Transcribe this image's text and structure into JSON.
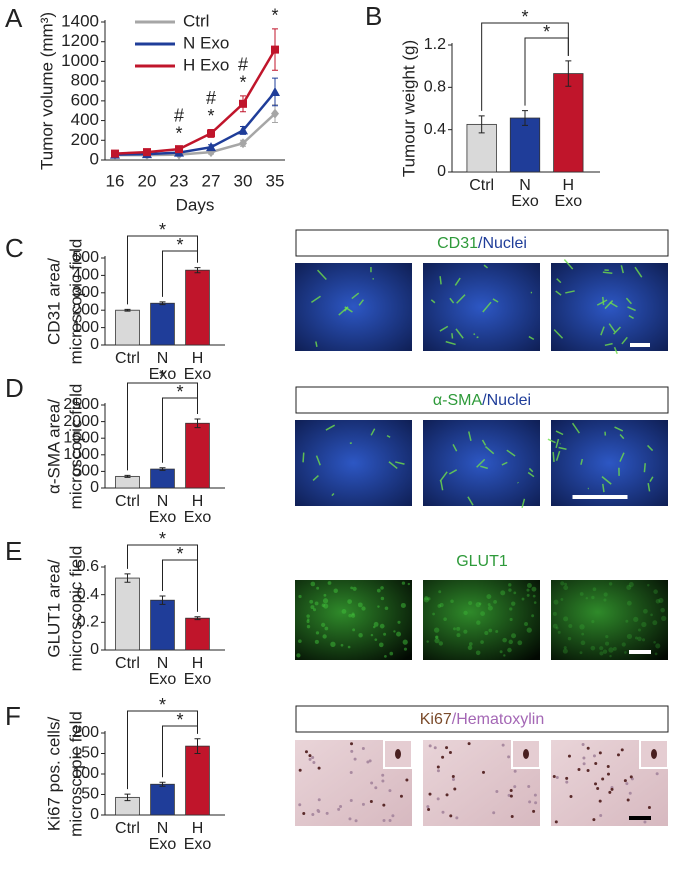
{
  "chart_data": [
    {
      "type": "line",
      "panel_label": "A",
      "ylabel": [
        "Tumor volume (mm³)"
      ],
      "xlabel": "Days",
      "categories": [
        "16",
        "20",
        "23",
        "27",
        "30",
        "35"
      ],
      "ylim": [
        0,
        1400
      ],
      "yticks": [
        0,
        200,
        400,
        600,
        800,
        1000,
        1200,
        1400
      ],
      "series": [
        {
          "name": "Ctrl",
          "color": "#a6a6a6",
          "marker": "diamond",
          "values": [
            50,
            50,
            55,
            80,
            170,
            470
          ],
          "errors": [
            10,
            10,
            15,
            20,
            30,
            90
          ]
        },
        {
          "name": "N Exo",
          "color": "#1f3d99",
          "marker": "triangle",
          "values": [
            55,
            60,
            75,
            130,
            300,
            690
          ],
          "errors": [
            10,
            10,
            15,
            25,
            40,
            140
          ]
        },
        {
          "name": "H Exo",
          "color": "#c0152b",
          "marker": "square",
          "values": [
            65,
            80,
            110,
            270,
            570,
            1120
          ],
          "errors": [
            15,
            15,
            25,
            40,
            80,
            210
          ]
        }
      ],
      "annotations": [
        {
          "x": "23",
          "labels": [
            "#",
            "*"
          ]
        },
        {
          "x": "27",
          "labels": [
            "#",
            "*"
          ]
        },
        {
          "x": "30",
          "labels": [
            "#",
            "*"
          ]
        },
        {
          "x": "35",
          "labels": [
            "*"
          ]
        }
      ]
    },
    {
      "type": "bar",
      "panel_label": "B",
      "ylabel": [
        "Tumour weight (g)"
      ],
      "categories": [
        "Ctrl",
        "N Exo",
        "H Exo"
      ],
      "colors": [
        "#d9d9d9",
        "#1f3d99",
        "#c0152b"
      ],
      "values": [
        0.45,
        0.51,
        0.93
      ],
      "errors": [
        0.08,
        0.07,
        0.12
      ],
      "ylim": [
        0,
        1.2
      ],
      "yticks": [
        0,
        0.4,
        0.8,
        1.2
      ],
      "annotations": [
        {
          "from": 0,
          "to": 2,
          "text": "*"
        },
        {
          "from": 1,
          "to": 2,
          "text": "*"
        }
      ]
    },
    {
      "type": "bar",
      "panel_label": "C",
      "ylabel": [
        "CD31 area/",
        "microscopic field"
      ],
      "categories": [
        "Ctrl",
        "N Exo",
        "H Exo"
      ],
      "colors": [
        "#d9d9d9",
        "#1f3d99",
        "#c0152b"
      ],
      "values": [
        200,
        240,
        430
      ],
      "errors": [
        5,
        8,
        15
      ],
      "ylim": [
        0,
        500
      ],
      "yticks": [
        0,
        100,
        200,
        300,
        400,
        500
      ],
      "annotations": [
        {
          "from": 0,
          "to": 2,
          "text": "*"
        },
        {
          "from": 1,
          "to": 2,
          "text": "*"
        }
      ]
    },
    {
      "type": "bar",
      "panel_label": "D",
      "ylabel": [
        "α-SMA area/",
        "microscopic field"
      ],
      "categories": [
        "Ctrl",
        "N Exo",
        "H Exo"
      ],
      "colors": [
        "#d9d9d9",
        "#1f3d99",
        "#c0152b"
      ],
      "values": [
        350,
        570,
        1950
      ],
      "errors": [
        30,
        40,
        130
      ],
      "ylim": [
        0,
        2500
      ],
      "yticks": [
        0,
        500,
        1000,
        1500,
        2000,
        2500
      ],
      "annotations": [
        {
          "from": 0,
          "to": 2,
          "text": "*"
        },
        {
          "from": 1,
          "to": 2,
          "text": "*"
        }
      ]
    },
    {
      "type": "bar",
      "panel_label": "E",
      "ylabel": [
        "GLUT1 area/",
        "microscopic field"
      ],
      "categories": [
        "Ctrl",
        "N Exo",
        "H Exo"
      ],
      "colors": [
        "#d9d9d9",
        "#1f3d99",
        "#c0152b"
      ],
      "values": [
        0.52,
        0.36,
        0.23
      ],
      "errors": [
        0.03,
        0.03,
        0.01
      ],
      "ylim": [
        0,
        0.6
      ],
      "yticks": [
        0,
        0.2,
        0.4,
        0.6
      ],
      "annotations": [
        {
          "from": 0,
          "to": 2,
          "text": "*"
        },
        {
          "from": 1,
          "to": 2,
          "text": "*"
        }
      ]
    },
    {
      "type": "bar",
      "panel_label": "F",
      "ylabel": [
        "Ki67 pos. cells/",
        "microscopic field"
      ],
      "categories": [
        "Ctrl",
        "N Exo",
        "H Exo"
      ],
      "colors": [
        "#d9d9d9",
        "#1f3d99",
        "#c0152b"
      ],
      "values": [
        43,
        75,
        168
      ],
      "errors": [
        8,
        5,
        18
      ],
      "ylim": [
        0,
        200
      ],
      "yticks": [
        0,
        50,
        100,
        150,
        200
      ],
      "annotations": [
        {
          "from": 0,
          "to": 2,
          "text": "*"
        },
        {
          "from": 1,
          "to": 2,
          "text": "*"
        }
      ]
    }
  ],
  "micrographs": [
    {
      "label_parts": [
        {
          "text": "CD31",
          "color": "#2e9a3a"
        },
        {
          "text": "/Nuclei",
          "color": "#1f3d99"
        }
      ]
    },
    {
      "label_parts": [
        {
          "text": "α-SMA",
          "color": "#2e9a3a"
        },
        {
          "text": "/Nuclei",
          "color": "#1f3d99"
        }
      ]
    },
    {
      "label_parts": [
        {
          "text": "GLUT1",
          "color": "#2e9a3a"
        }
      ]
    },
    {
      "label_parts": [
        {
          "text": "Ki67",
          "color": "#7a4a2a"
        },
        {
          "text": "/Hematoxylin",
          "color": "#a467b5"
        }
      ]
    }
  ]
}
